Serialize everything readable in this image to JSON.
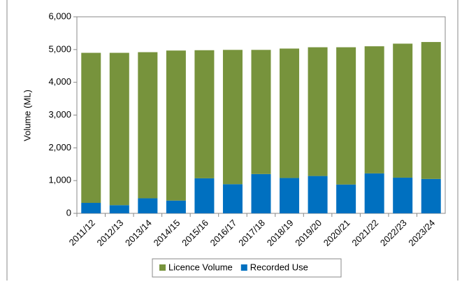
{
  "chart_data": {
    "type": "stacked_bar",
    "y_label": "Volume (ML)",
    "categories": [
      "2011/12",
      "2012/13",
      "2013/14",
      "2014/15",
      "2015/16",
      "2016/17",
      "2017/18",
      "2018/19",
      "2019/20",
      "2020/21",
      "2021/22",
      "2022/23",
      "2023/24"
    ],
    "series": [
      {
        "name": "Licence Volume",
        "color": "#77933c",
        "values": [
          4580,
          4650,
          4460,
          4580,
          3910,
          4100,
          3790,
          3950,
          3930,
          4190,
          3880,
          4090,
          4180
        ]
      },
      {
        "name": "Recorded Use",
        "color": "#0070c0",
        "values": [
          320,
          250,
          460,
          390,
          1070,
          890,
          1200,
          1080,
          1140,
          880,
          1220,
          1090,
          1050
        ]
      }
    ],
    "ylim": [
      0,
      6000
    ],
    "yticks": [
      0,
      {
        "value": 1000,
        "label": "1,000"
      },
      {
        "value": 2000,
        "label": "2,000"
      },
      {
        "value": 3000,
        "label": "3,000"
      },
      {
        "value": 4000,
        "label": "4,000"
      },
      {
        "value": 5000,
        "label": "5,000"
      },
      {
        "value": 6000,
        "label": "6,000"
      }
    ],
    "legend": "bottom"
  }
}
